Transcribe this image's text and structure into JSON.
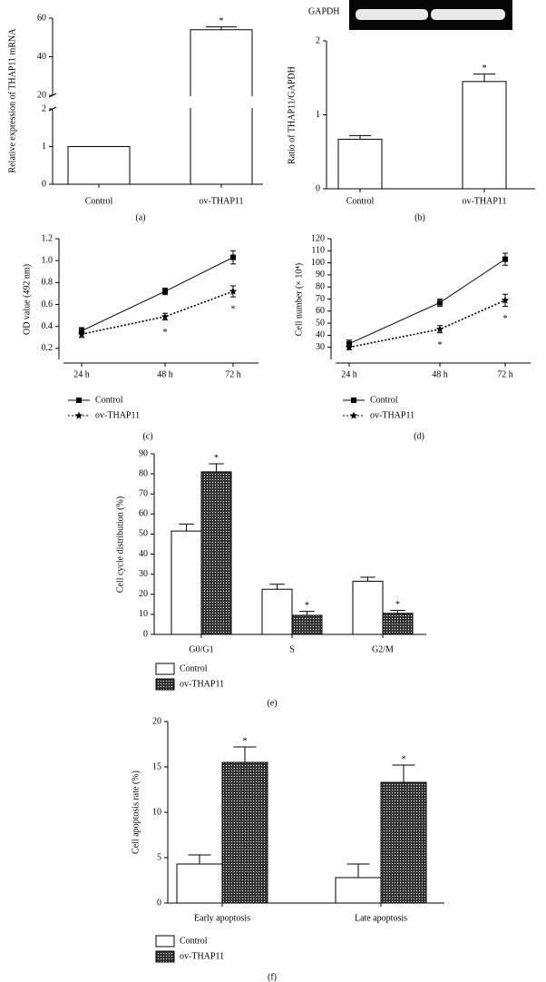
{
  "chart_data": [
    {
      "type": "bar",
      "panel_label": "(a)",
      "ylabel": "Relative expression of THAP11 mRNA",
      "categories": [
        "Control",
        "ov-THAP11"
      ],
      "values": [
        1,
        54
      ],
      "errors": [
        0,
        1.5
      ],
      "markers": [
        null,
        "*"
      ],
      "color": "#ffffff",
      "ylim": [
        0,
        60
      ],
      "yticks": [
        0,
        1,
        2,
        20,
        40,
        60
      ],
      "axis_break": [
        2,
        20
      ]
    },
    {
      "type": "bar",
      "panel_label": "(b)",
      "blot_label": "GAPDH",
      "ylabel": "Ratio of THAP11/GAPDH",
      "categories": [
        "Control",
        "ov-THAP11"
      ],
      "values": [
        0.67,
        1.45
      ],
      "errors": [
        0.05,
        0.1
      ],
      "markers": [
        null,
        "*"
      ],
      "color": "#ffffff",
      "ylim": [
        0,
        2
      ],
      "yticks": [
        0,
        1,
        2
      ]
    },
    {
      "type": "line",
      "panel_label": "(c)",
      "ylabel": "OD value (492 nm)",
      "categories": [
        "24 h",
        "48 h",
        "72 h"
      ],
      "series": [
        {
          "name": "Control",
          "color": "#000000",
          "line_style": "solid",
          "marker": "square",
          "values": [
            0.36,
            0.72,
            1.03
          ],
          "errors": [
            0.03,
            0.03,
            0.06
          ]
        },
        {
          "name": "ov-THAP11",
          "color": "#000000",
          "line_style": "dotted",
          "marker": "star",
          "values": [
            0.33,
            0.49,
            0.72
          ],
          "errors": [
            0.03,
            0.03,
            0.05
          ],
          "markers": [
            null,
            "*",
            "*"
          ]
        }
      ],
      "ylim": [
        0.1,
        1.2
      ],
      "yticks": [
        0.2,
        0.4,
        0.6,
        0.8,
        {
          "value": 1,
          "label": "1.0"
        },
        1.2
      ],
      "legend": "below"
    },
    {
      "type": "line",
      "panel_label": "(d)",
      "ylabel": "Cell number (× 10⁴)",
      "categories": [
        "24 h",
        "48 h",
        "72 h"
      ],
      "series": [
        {
          "name": "Control",
          "color": "#000000",
          "line_style": "solid",
          "marker": "square",
          "values": [
            33,
            67,
            103
          ],
          "errors": [
            3,
            3,
            5
          ]
        },
        {
          "name": "ov-THAP11",
          "color": "#000000",
          "line_style": "dotted",
          "marker": "star",
          "values": [
            30,
            45,
            69
          ],
          "errors": [
            2,
            3,
            5
          ],
          "markers": [
            null,
            "*",
            "*"
          ]
        }
      ],
      "ylim": [
        20,
        120
      ],
      "yticks": [
        30,
        40,
        50,
        60,
        70,
        80,
        90,
        100,
        110,
        120
      ],
      "legend": "below"
    },
    {
      "type": "bar",
      "panel_label": "(e)",
      "ylabel": "Cell cycle distribution (%)",
      "categories": [
        "G0/G1",
        "S",
        "G2/M"
      ],
      "series": [
        {
          "name": "Control",
          "color": "#ffffff",
          "values": [
            51.5,
            22.5,
            26.5
          ],
          "errors": [
            3.5,
            2.5,
            2
          ]
        },
        {
          "name": "ov-THAP11",
          "color": "#333333",
          "fill": "crosshatch",
          "values": [
            81,
            9.5,
            10.5
          ],
          "errors": [
            4,
            2,
            1.5
          ],
          "markers": [
            "*",
            "*",
            "*"
          ]
        }
      ],
      "ylim": [
        0,
        90
      ],
      "yticks": [
        0,
        10,
        20,
        30,
        40,
        50,
        60,
        70,
        80,
        90
      ],
      "legend": "below"
    },
    {
      "type": "bar",
      "panel_label": "(f)",
      "ylabel": "Cell apoptosis rate (%)",
      "categories": [
        "Early apoptosis",
        "Late apoptosis"
      ],
      "series": [
        {
          "name": "Control",
          "color": "#ffffff",
          "values": [
            4.3,
            2.8
          ],
          "errors": [
            1,
            1.5
          ]
        },
        {
          "name": "ov-THAP11",
          "color": "#333333",
          "fill": "crosshatch",
          "values": [
            15.5,
            13.3
          ],
          "errors": [
            1.7,
            1.9
          ],
          "markers": [
            "*",
            "*"
          ]
        }
      ],
      "ylim": [
        0,
        20
      ],
      "yticks": [
        0,
        5,
        10,
        15,
        20
      ],
      "legend": "below"
    }
  ]
}
